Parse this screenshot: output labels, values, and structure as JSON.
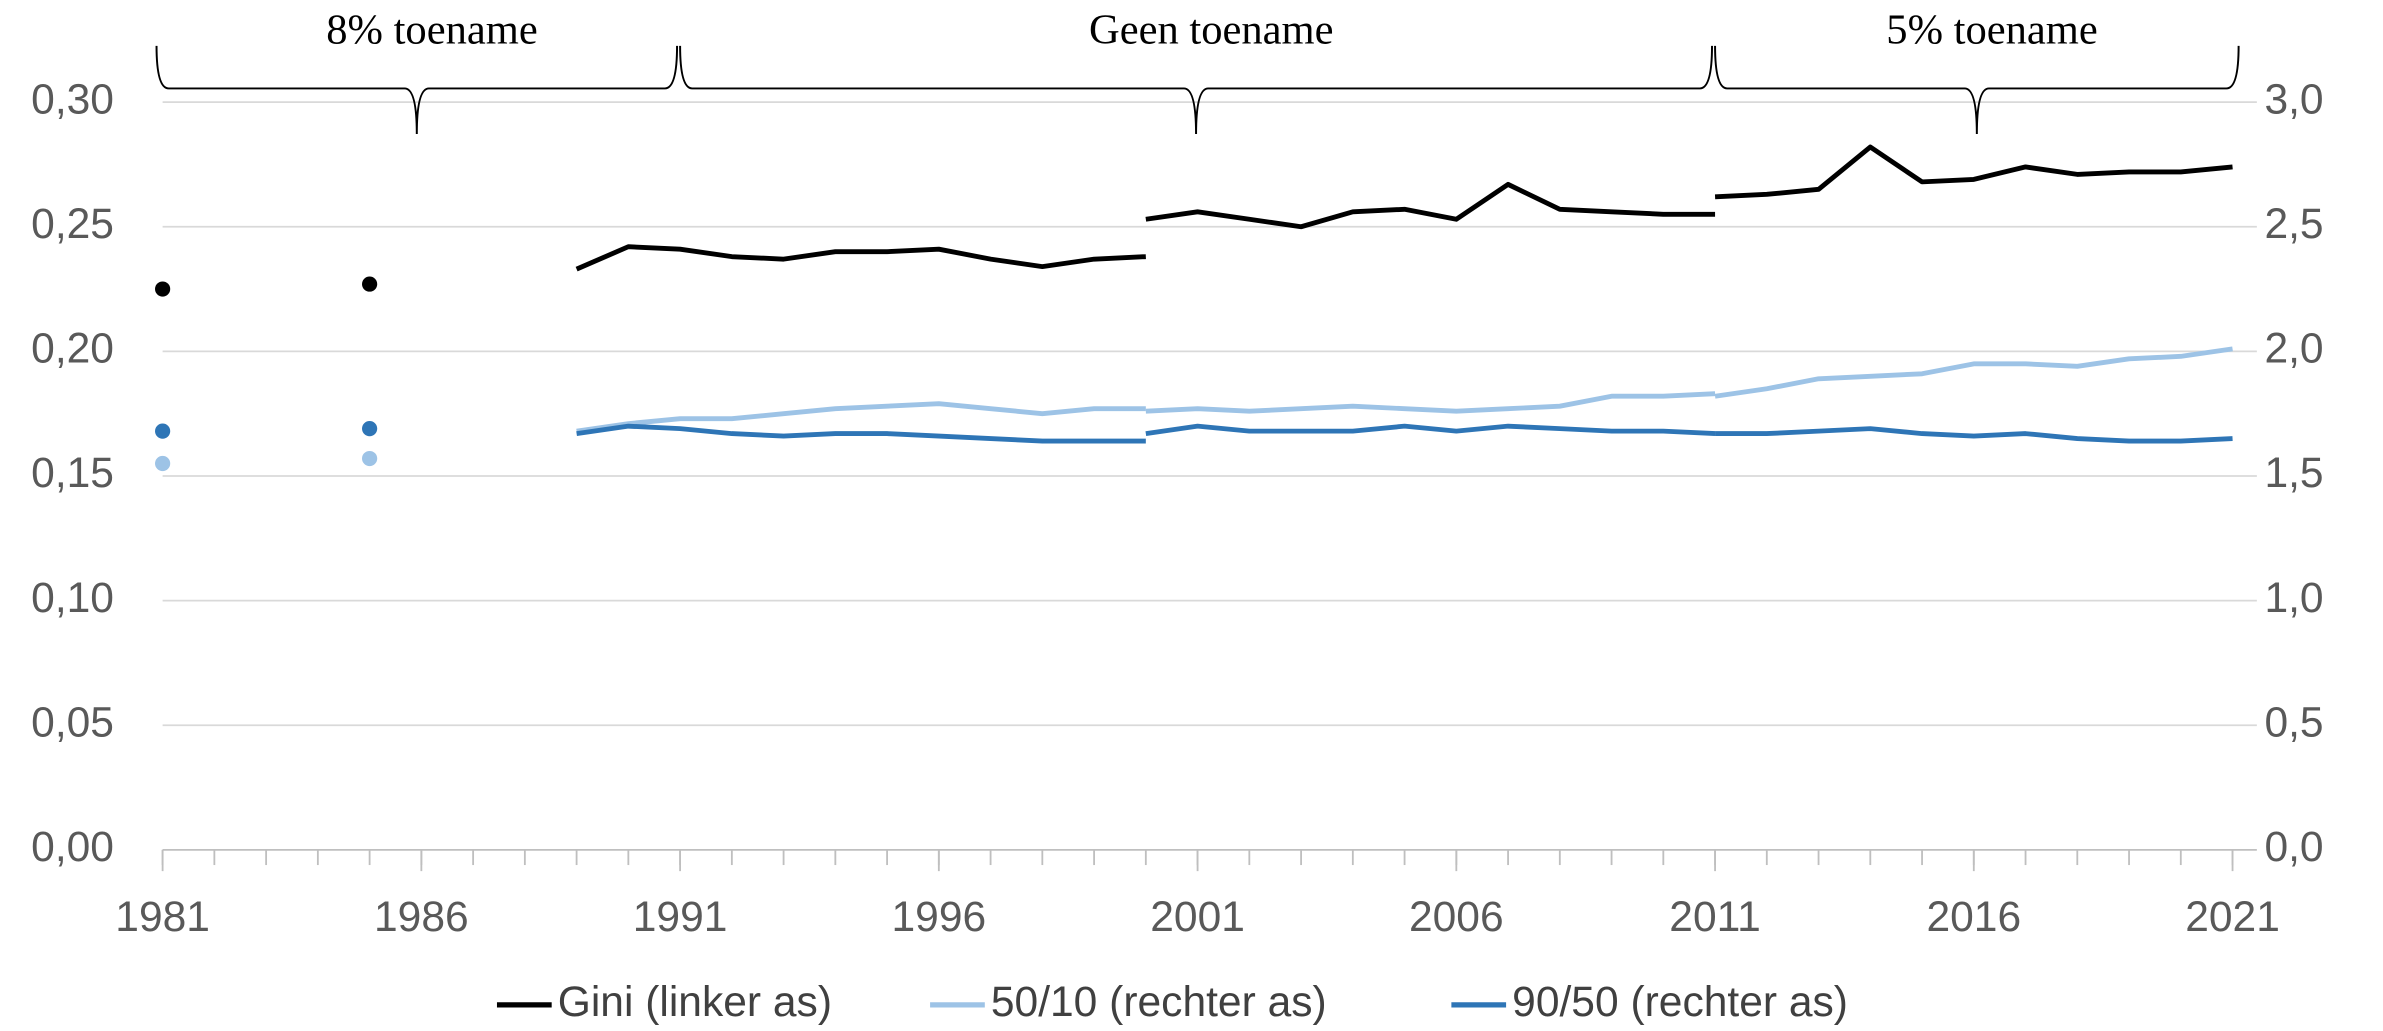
{
  "chart_data": {
    "type": "line",
    "x": [
      1981,
      1982,
      1983,
      1984,
      1985,
      1986,
      1987,
      1988,
      1989,
      1990,
      1991,
      1992,
      1993,
      1994,
      1995,
      1996,
      1997,
      1998,
      1999,
      2000,
      2000,
      2001,
      2002,
      2003,
      2004,
      2005,
      2006,
      2007,
      2008,
      2009,
      2010,
      2011,
      2011,
      2012,
      2013,
      2014,
      2015,
      2016,
      2017,
      2018,
      2019,
      2020,
      2021
    ],
    "series": [
      {
        "name": "Gini (linker as)",
        "color": "#000000",
        "values": [
          0.225,
          null,
          null,
          null,
          0.227,
          null,
          null,
          null,
          0.233,
          0.242,
          0.241,
          0.238,
          0.237,
          0.24,
          0.24,
          0.241,
          0.237,
          0.234,
          0.237,
          0.238,
          0.253,
          0.256,
          0.253,
          0.25,
          0.256,
          0.257,
          0.253,
          0.267,
          0.257,
          0.256,
          0.255,
          0.255,
          0.262,
          0.263,
          0.265,
          0.282,
          0.268,
          0.269,
          0.274,
          0.271,
          0.272,
          0.272,
          0.274
        ]
      },
      {
        "name": "50/10 (rechter as)",
        "color": "#9dc3e6",
        "axis": "y2",
        "values": [
          1.55,
          null,
          null,
          null,
          1.57,
          null,
          null,
          null,
          1.68,
          1.71,
          1.73,
          1.73,
          1.75,
          1.77,
          1.78,
          1.79,
          1.77,
          1.75,
          1.77,
          1.77,
          1.76,
          1.77,
          1.76,
          1.77,
          1.78,
          1.77,
          1.76,
          1.77,
          1.78,
          1.82,
          1.82,
          1.83,
          1.82,
          1.85,
          1.89,
          1.9,
          1.91,
          1.95,
          1.95,
          1.94,
          1.97,
          1.98,
          2.01
        ]
      },
      {
        "name": "90/50 (rechter as)",
        "color": "#2e75b6",
        "axis": "y2",
        "values": [
          1.68,
          null,
          null,
          null,
          1.69,
          null,
          null,
          null,
          1.67,
          1.7,
          1.69,
          1.67,
          1.66,
          1.67,
          1.67,
          1.66,
          1.65,
          1.64,
          1.64,
          1.64,
          1.67,
          1.7,
          1.68,
          1.68,
          1.68,
          1.7,
          1.68,
          1.7,
          1.69,
          1.68,
          1.68,
          1.67,
          1.67,
          1.67,
          1.68,
          1.69,
          1.67,
          1.66,
          1.67,
          1.65,
          1.64,
          1.64,
          1.65
        ]
      }
    ],
    "xlim": [
      1981,
      2021
    ],
    "xticks": [
      1981,
      1986,
      1991,
      1996,
      2001,
      2006,
      2011,
      2016,
      2021
    ],
    "ylim": [
      0,
      0.3
    ],
    "yticks": [
      {
        "value": 0,
        "label": "0,00"
      },
      {
        "value": 0.05,
        "label": "0,05"
      },
      {
        "value": 0.1,
        "label": "0,10"
      },
      {
        "value": 0.15,
        "label": "0,15"
      },
      {
        "value": 0.2,
        "label": "0,20"
      },
      {
        "value": 0.25,
        "label": "0,25"
      },
      {
        "value": 0.3,
        "label": "0,30"
      }
    ],
    "y2lim": [
      0,
      3.0
    ],
    "y2ticks": [
      {
        "value": 0,
        "label": "0,0"
      },
      {
        "value": 0.5,
        "label": "0,5"
      },
      {
        "value": 1,
        "label": "1,0"
      },
      {
        "value": 1.5,
        "label": "1,5"
      },
      {
        "value": 2,
        "label": "2,0"
      },
      {
        "value": 2.5,
        "label": "2,5"
      },
      {
        "value": 3,
        "label": "3,0"
      }
    ],
    "grid": true,
    "legend": "bottom",
    "annotations": [
      {
        "text": "8% toename",
        "from": 1981,
        "to": 1991
      },
      {
        "text": "Geen toename",
        "from": 1991,
        "to": 2011
      },
      {
        "text": "5% toename",
        "from": 2011,
        "to": 2021
      }
    ]
  }
}
